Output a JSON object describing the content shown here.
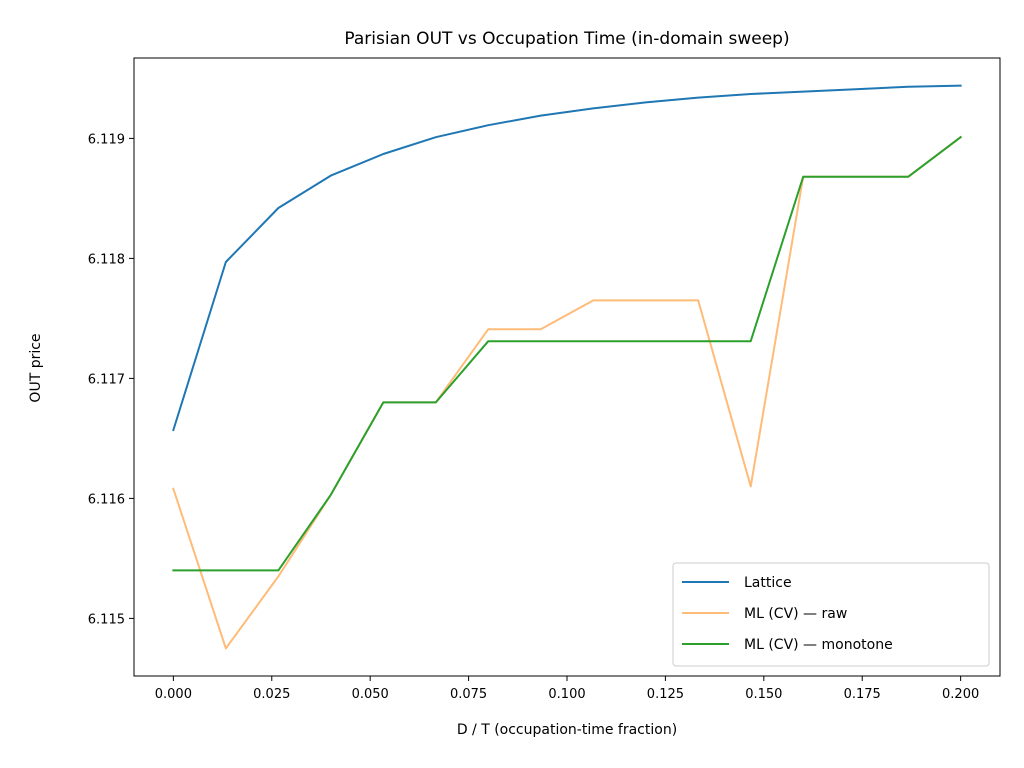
{
  "chart_data": {
    "type": "line",
    "title": "Parisian OUT vs Occupation Time (in-domain sweep)",
    "xlabel": "D / T (occupation-time fraction)",
    "ylabel": "OUT price",
    "xlim": [
      -0.01,
      0.21
    ],
    "ylim": [
      6.11452,
      6.11967
    ],
    "x_ticks": [
      "0.000",
      "0.025",
      "0.050",
      "0.075",
      "0.100",
      "0.125",
      "0.150",
      "0.175",
      "0.200"
    ],
    "y_ticks": [
      "6.115",
      "6.116",
      "6.117",
      "6.118",
      "6.119"
    ],
    "grid": false,
    "legend_position": "lower-right",
    "x": [
      0.0,
      0.01333,
      0.02667,
      0.04,
      0.05333,
      0.06667,
      0.08,
      0.09333,
      0.10667,
      0.12,
      0.13333,
      0.14667,
      0.16,
      0.17333,
      0.18667,
      0.2
    ],
    "series": [
      {
        "name": "Lattice",
        "color": "#1f77b4",
        "values": [
          6.11657,
          6.11797,
          6.11842,
          6.11869,
          6.11887,
          6.11901,
          6.11911,
          6.11919,
          6.11925,
          6.1193,
          6.11934,
          6.11937,
          6.11939,
          6.11941,
          6.11943,
          6.11944
        ]
      },
      {
        "name": "ML (CV) — raw",
        "color": "#ffbb78",
        "values": [
          6.11608,
          6.11475,
          6.11535,
          6.11603,
          6.1168,
          6.1168,
          6.11741,
          6.11741,
          6.11765,
          6.11765,
          6.11765,
          6.1161,
          6.11868,
          6.11868,
          6.11868,
          6.11901
        ]
      },
      {
        "name": "ML (CV) — monotone",
        "color": "#2ca02c",
        "values": [
          6.1154,
          6.1154,
          6.1154,
          6.11603,
          6.1168,
          6.1168,
          6.11731,
          6.11731,
          6.11731,
          6.11731,
          6.11731,
          6.11731,
          6.11868,
          6.11868,
          6.11868,
          6.11901
        ]
      }
    ]
  }
}
